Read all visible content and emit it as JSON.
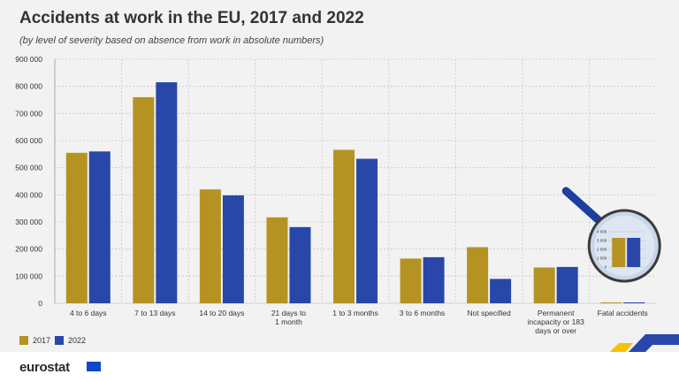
{
  "title": "Accidents at work in the EU, 2017 and 2022",
  "subtitle": "(by level of severity based on absence from work in absolute numbers)",
  "logo_text": "eurostat",
  "colors": {
    "s2017": "#b59323",
    "s2022": "#2847a8",
    "grid": "#c8c8c8",
    "background": "#f2f2f2"
  },
  "chart_data": {
    "type": "bar",
    "title": "Accidents at work in the EU, 2017 and 2022",
    "subtitle": "(by level of severity based on absence from work in absolute numbers)",
    "categories": [
      [
        "4 to 6 days"
      ],
      [
        "7 to 13 days"
      ],
      [
        "14 to 20 days"
      ],
      [
        "21 days to",
        "1 month"
      ],
      [
        "1 to 3 months"
      ],
      [
        "3 to 6 months"
      ],
      [
        "Not specified"
      ],
      [
        "Permanent",
        "incapacity or 183",
        "days or over"
      ],
      [
        "Fatal accidents"
      ]
    ],
    "series": [
      {
        "name": "2017",
        "values": [
          555000,
          760000,
          420000,
          317000,
          566000,
          165000,
          207000,
          132000,
          3300
        ]
      },
      {
        "name": "2022",
        "values": [
          560000,
          815000,
          398000,
          281000,
          533000,
          170000,
          90000,
          134000,
          3300
        ]
      }
    ],
    "yticks": [
      "900 000",
      "800 000",
      "700 000",
      "600 000",
      "500 000",
      "400 000",
      "300 000",
      "200 000",
      "100 000",
      "0"
    ],
    "ylim": [
      0,
      900000
    ],
    "legend_position": "bottom-left",
    "inset": {
      "label": "Fatal accidents (magnified)",
      "yticks": [
        "4 000",
        "3 000",
        "2 000",
        "1 000",
        "0"
      ],
      "ylim": [
        0,
        4000
      ]
    }
  }
}
